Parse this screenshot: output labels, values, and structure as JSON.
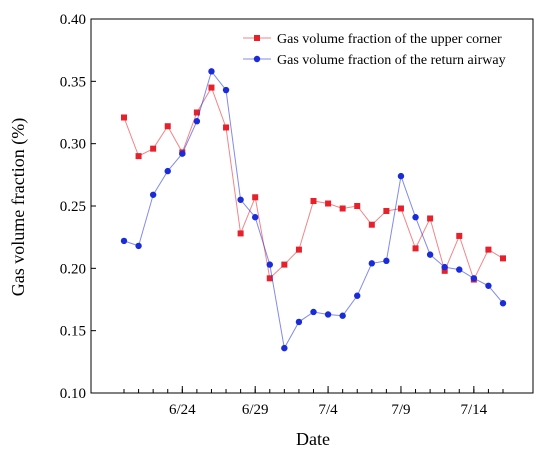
{
  "chart_data": {
    "type": "line",
    "xlabel": "Date",
    "ylabel": "Gas volume fraction (%)",
    "grid": false,
    "legend_position": "top-right",
    "x": [
      "6/20",
      "6/21",
      "6/22",
      "6/23",
      "6/24",
      "6/25",
      "6/26",
      "6/27",
      "6/28",
      "6/29",
      "6/30",
      "7/1",
      "7/2",
      "7/3",
      "7/4",
      "7/5",
      "7/6",
      "7/7",
      "7/8",
      "7/9",
      "7/10",
      "7/11",
      "7/12",
      "7/13",
      "7/14",
      "7/15",
      "7/16"
    ],
    "xticks": [
      "6/24",
      "6/29",
      "7/4",
      "7/9",
      "7/14"
    ],
    "ylim": [
      0.1,
      0.4
    ],
    "yticks": [
      "0.10",
      "0.15",
      "0.20",
      "0.25",
      "0.30",
      "0.35",
      "0.40"
    ],
    "series": [
      {
        "name": "Gas volume fraction of the upper corner",
        "color": "#e8202a",
        "marker": "square",
        "values": [
          0.321,
          0.29,
          0.296,
          0.314,
          0.293,
          0.325,
          0.345,
          0.313,
          0.228,
          0.257,
          0.192,
          0.203,
          0.215,
          0.254,
          0.252,
          0.248,
          0.25,
          0.235,
          0.246,
          0.248,
          0.216,
          0.24,
          0.198,
          0.226,
          0.191,
          0.215,
          0.208
        ]
      },
      {
        "name": "Gas volume fraction of the return airway",
        "color": "#1a2bd9",
        "marker": "circle",
        "values": [
          0.222,
          0.218,
          0.259,
          0.278,
          0.292,
          0.318,
          0.358,
          0.343,
          0.255,
          0.241,
          0.203,
          0.136,
          0.157,
          0.165,
          0.163,
          0.162,
          0.178,
          0.204,
          0.206,
          0.274,
          0.241,
          0.211,
          0.201,
          0.199,
          0.192,
          0.186,
          0.172
        ]
      }
    ]
  }
}
